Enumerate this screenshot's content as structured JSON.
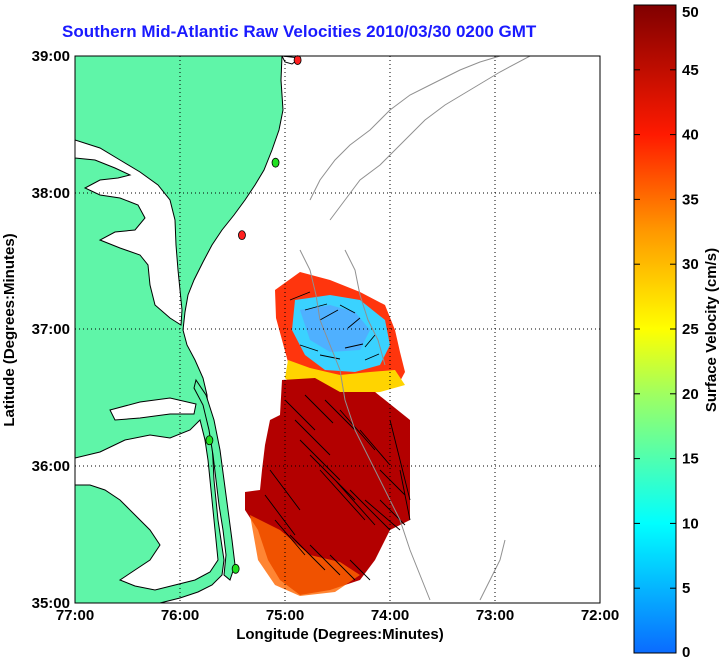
{
  "title": "Southern Mid-Atlantic Raw Velocities 2010/03/30 0200 GMT",
  "map": {
    "x_axis": {
      "label": "Longitude (Degrees:Minutes)",
      "ticks": [
        "77:00",
        "76:00",
        "75:00",
        "74:00",
        "73:00",
        "72:00"
      ]
    },
    "y_axis": {
      "label": "Latitude (Degrees:Minutes)",
      "ticks": [
        "39:00",
        "38:00",
        "37:00",
        "36:00",
        "35:00"
      ]
    },
    "extent": {
      "lon_min": -77,
      "lon_max": -72,
      "lat_min": 35,
      "lat_max": 39
    },
    "grid": "dotted",
    "colors": {
      "land": "#5ff5a8",
      "coast": "#000000",
      "bathymetry": "#909090"
    },
    "station_markers": [
      {
        "lon": -74.88,
        "lat": 38.97,
        "color": "#ff2020"
      },
      {
        "lon": -75.09,
        "lat": 38.22,
        "color": "#20e020"
      },
      {
        "lon": -75.41,
        "lat": 37.69,
        "color": "#ff2020"
      },
      {
        "lon": -75.72,
        "lat": 36.19,
        "color": "#20e020"
      },
      {
        "lon": -75.47,
        "lat": 35.25,
        "color": "#20e020"
      }
    ]
  },
  "colorbar": {
    "label": "Surface Velocity (cm/s)",
    "ticks": [
      "0",
      "5",
      "10",
      "15",
      "20",
      "25",
      "30",
      "35",
      "40",
      "45",
      "50"
    ],
    "min": 0,
    "max": 50
  }
}
